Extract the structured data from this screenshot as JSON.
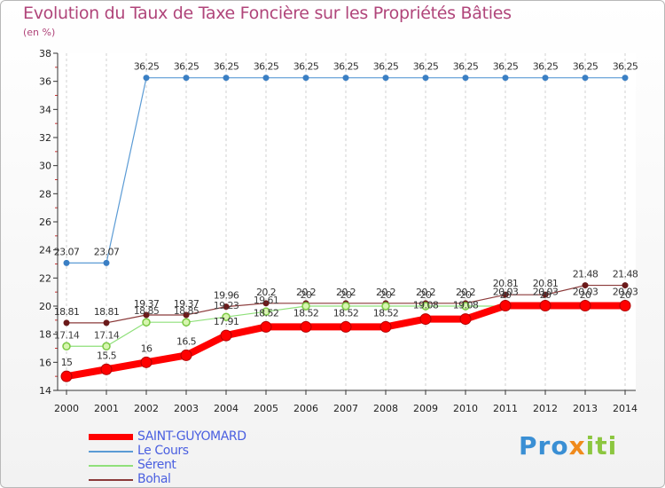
{
  "title": "Evolution du Taux de Taxe Foncière sur les Propriétés Bâties",
  "subtitle": "(en %)",
  "brand": {
    "p1": "Pro",
    "p2": "x",
    "p3": "iti"
  },
  "chart_data": {
    "type": "line",
    "title": "Evolution du Taux de Taxe Foncière sur les Propriétés Bâties",
    "ylabel": "(en %)",
    "xlabel": "",
    "ylim": [
      14,
      38
    ],
    "y_ticks": [
      14,
      16,
      18,
      20,
      22,
      24,
      26,
      28,
      30,
      32,
      34,
      36,
      38
    ],
    "categories": [
      "2000",
      "2001",
      "2002",
      "2003",
      "2004",
      "2005",
      "2006",
      "2007",
      "2008",
      "2009",
      "2010",
      "2011",
      "2012",
      "2013",
      "2014"
    ],
    "legend_position": "bottom-left",
    "series": [
      {
        "name": "SAINT-GUYOMARD",
        "color": "#ff0000",
        "marker": "#cc0000",
        "values": [
          15,
          15.5,
          16,
          16.5,
          17.91,
          18.52,
          18.52,
          18.52,
          18.52,
          19.08,
          19.08,
          20.03,
          20.03,
          20.03,
          20.03
        ],
        "labels": [
          "15",
          "15.5",
          "16",
          "16.5",
          "17.91",
          "18.52",
          "18.52",
          "18.52",
          "18.52",
          "19.08",
          "19.08",
          "20.03",
          "20.03",
          "20.03",
          "20.03"
        ]
      },
      {
        "name": "Le Cours",
        "color": "#5b9bd5",
        "marker": "#3a7fc4",
        "values": [
          23.07,
          23.07,
          36.25,
          36.25,
          36.25,
          36.25,
          36.25,
          36.25,
          36.25,
          36.25,
          36.25,
          36.25,
          36.25,
          36.25,
          36.25
        ],
        "labels": [
          "23.07",
          "23.07",
          "36.25",
          "36.25",
          "36.25",
          "36.25",
          "36.25",
          "36.25",
          "36.25",
          "36.25",
          "36.25",
          "36.25",
          "36.25",
          "36.25",
          "36.25"
        ]
      },
      {
        "name": "Sérent",
        "color": "#8fe07a",
        "marker": "#7ac943",
        "values": [
          17.14,
          17.14,
          18.85,
          18.85,
          19.23,
          19.61,
          20,
          20,
          20,
          20,
          20,
          20,
          20,
          20,
          20
        ],
        "labels": [
          "17.14",
          "17.14",
          "18.85",
          "18.85",
          "19.23",
          "19.61",
          "20",
          "20",
          "20",
          "20",
          "20",
          "20",
          "20",
          "20",
          "20"
        ]
      },
      {
        "name": "Bohal",
        "color": "#8b3a3a",
        "marker": "#6b1a1a",
        "values": [
          18.81,
          18.81,
          19.37,
          19.37,
          19.96,
          20.2,
          20.2,
          20.2,
          20.2,
          20.2,
          20.2,
          20.81,
          20.81,
          21.48,
          21.48
        ],
        "labels": [
          "18.81",
          "18.81",
          "19.37",
          "19.37",
          "19.96",
          "20.2",
          "20.2",
          "20.2",
          "20.2",
          "20.2",
          "20.2",
          "20.81",
          "20.81",
          "21.48",
          "21.48"
        ]
      }
    ]
  }
}
